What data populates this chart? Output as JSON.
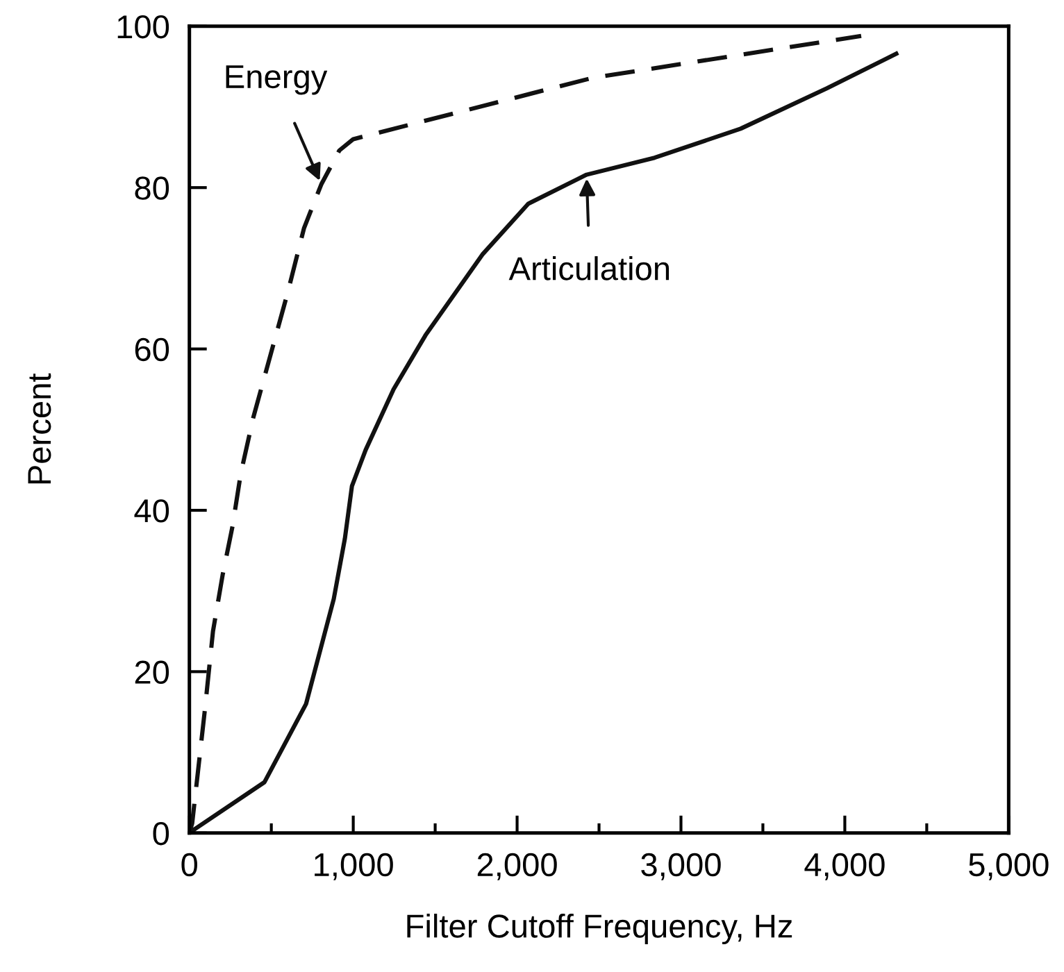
{
  "chart_data": {
    "type": "line",
    "xlabel": "Filter Cutoff Frequency, Hz",
    "ylabel": "Percent",
    "xlim": [
      0,
      5000
    ],
    "ylim": [
      0,
      100
    ],
    "xticks": [
      0,
      {
        "value": 500,
        "label": null
      },
      {
        "value": 1000,
        "label": "1,000"
      },
      {
        "value": 1500,
        "label": null
      },
      {
        "value": 2000,
        "label": "2,000"
      },
      {
        "value": 2500,
        "label": null
      },
      {
        "value": 3000,
        "label": "3,000"
      },
      {
        "value": 3500,
        "label": null
      },
      {
        "value": 4000,
        "label": "4,000"
      },
      {
        "value": 4500,
        "label": null
      },
      {
        "value": 5000,
        "label": "5,000"
      }
    ],
    "yticks": [
      0,
      20,
      40,
      60,
      80,
      100
    ],
    "grid": false,
    "legend": false,
    "marker": "none",
    "series": [
      {
        "color": "#111111",
        "line_style": "dashed",
        "x": [
          0,
          17,
          93,
          144,
          203,
          263,
          314,
          390,
          600,
          700,
          805,
          915,
          1000,
          2460,
          4100
        ],
        "values": [
          0,
          1.2,
          15,
          25,
          32,
          38,
          44.6,
          51.5,
          67,
          75,
          80.4,
          84.6,
          86,
          93.6,
          98.8
        ]
      },
      {
        "color": "#111111",
        "line_style": "solid",
        "x": [
          0,
          34,
          458,
          712,
          881,
          949,
          992,
          1076,
          1246,
          1441,
          1788,
          2068,
          2424,
          2839,
          3364,
          3890,
          4314
        ],
        "values": [
          0,
          0.5,
          6.3,
          16,
          29,
          36.5,
          43,
          47.5,
          55,
          61.7,
          71.7,
          78,
          81.6,
          83.7,
          87.3,
          92.3,
          96.6
        ]
      }
    ],
    "annotations": [
      {
        "text": "Energy",
        "x": 805,
        "y": 80.4
      },
      {
        "text": "Articulation",
        "x": 2424,
        "y": 81.6
      }
    ]
  }
}
